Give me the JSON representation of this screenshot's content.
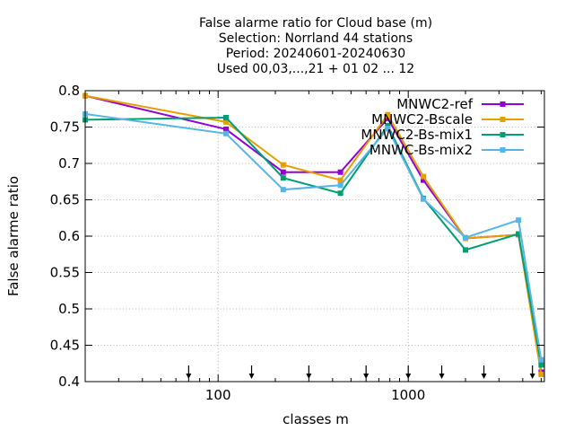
{
  "chart_data": {
    "type": "line",
    "title_lines": [
      "False alarme ratio  for Cloud base (m)",
      "Selection: Norrland     44 stations",
      "Period: 20240601-20240630",
      "Used 00,03,...,21 + 01 02 ... 12"
    ],
    "xlabel": "classes m",
    "ylabel": "False alarme ratio",
    "x_scale": "log",
    "xlim": [
      20,
      5200
    ],
    "ylim": [
      0.4,
      0.8
    ],
    "x_tick_labels": [
      "100",
      "1000"
    ],
    "y_tick_labels": [
      "0.4",
      "0.45",
      "0.5",
      "0.55",
      "0.6",
      "0.65",
      "0.7",
      "0.75",
      "0.8"
    ],
    "grid": true,
    "legend_position": "top-right",
    "arrow_markers_x": [
      70,
      150,
      300,
      600,
      1000,
      1500,
      2500,
      4500
    ],
    "x": [
      20,
      110,
      220,
      440,
      780,
      1200,
      2000,
      3800,
      5000
    ],
    "series": [
      {
        "name": "MNWC2-ref",
        "color": "#9400d3",
        "values": [
          0.793,
          0.747,
          0.688,
          0.688,
          0.762,
          0.677,
          0.597,
          0.602,
          0.413
        ]
      },
      {
        "name": "MNWC2-Bscale",
        "color": "#e69f00",
        "values": [
          0.793,
          0.757,
          0.698,
          0.677,
          0.767,
          0.682,
          0.597,
          0.602,
          0.41
        ]
      },
      {
        "name": "MNWC2-Bs-mix1",
        "color": "#009e73",
        "values": [
          0.76,
          0.763,
          0.68,
          0.659,
          0.752,
          0.652,
          0.581,
          0.603,
          0.423
        ]
      },
      {
        "name": "MNWC-Bs-mix2",
        "color": "#56b4e9",
        "values": [
          0.768,
          0.741,
          0.664,
          0.67,
          0.748,
          0.651,
          0.598,
          0.622,
          0.43
        ]
      }
    ]
  }
}
